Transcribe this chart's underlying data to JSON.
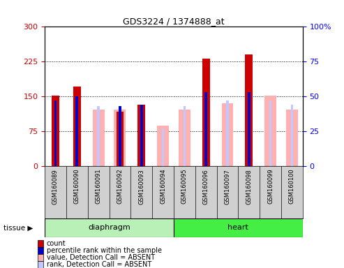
{
  "title": "GDS3224 / 1374888_at",
  "samples": [
    "GSM160089",
    "GSM160090",
    "GSM160091",
    "GSM160092",
    "GSM160093",
    "GSM160094",
    "GSM160095",
    "GSM160096",
    "GSM160097",
    "GSM160098",
    "GSM160099",
    "GSM160100"
  ],
  "count": [
    152,
    172,
    null,
    118,
    133,
    null,
    null,
    232,
    null,
    240,
    null,
    null
  ],
  "percentile_rank": [
    47,
    50,
    null,
    43,
    44,
    null,
    null,
    53,
    null,
    53,
    null,
    null
  ],
  "absent_value": [
    null,
    null,
    122,
    122,
    null,
    88,
    122,
    null,
    135,
    null,
    152,
    122
  ],
  "absent_rank": [
    null,
    null,
    43,
    null,
    null,
    27,
    43,
    null,
    47,
    null,
    47,
    44
  ],
  "ylim_left": [
    0,
    300
  ],
  "ylim_right": [
    0,
    100
  ],
  "yticks_left": [
    0,
    75,
    150,
    225,
    300
  ],
  "yticks_right": [
    0,
    25,
    50,
    75,
    100
  ],
  "color_count": "#cc0000",
  "color_percentile": "#0000cc",
  "color_absent_value": "#ffb0b0",
  "color_absent_rank": "#c0c8ff",
  "diaphragm_color": "#b8f0b8",
  "heart_color": "#44ee44",
  "background_tick": "#d0d0d0"
}
